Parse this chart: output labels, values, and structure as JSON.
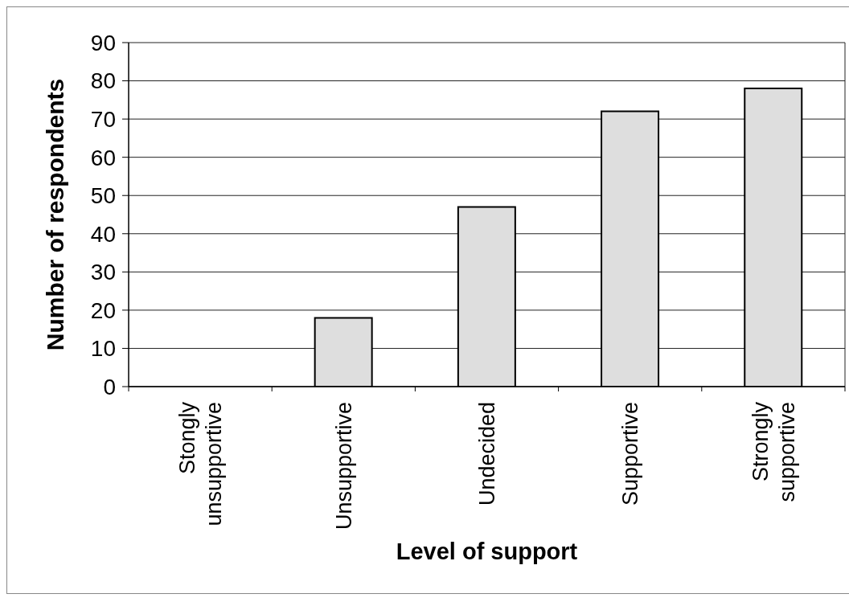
{
  "chart_data": {
    "type": "bar",
    "xlabel": "Level of support",
    "ylabel": "Number of respondents",
    "categories": [
      "Stongly unsupportive",
      "Unsupportive",
      "Undecided",
      "Supportive",
      "Strongly supportive"
    ],
    "values": [
      0,
      18,
      47,
      72,
      78
    ],
    "color": "#dedede",
    "ylim": [
      0,
      90
    ],
    "yticks": [
      0,
      10,
      20,
      30,
      40,
      50,
      60,
      70,
      80,
      90
    ],
    "grid": "y"
  }
}
